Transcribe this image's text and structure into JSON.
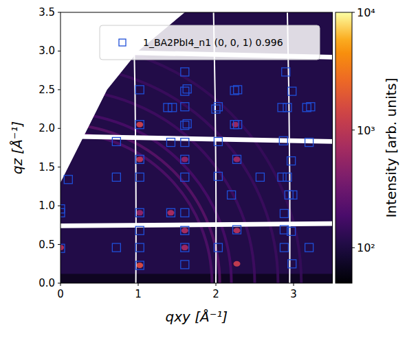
{
  "chart_data": {
    "type": "scatter",
    "x_label": "qxy [Å⁻¹]",
    "y_label": "qz [Å⁻¹]",
    "xlim": [
      0,
      3.5
    ],
    "ylim": [
      0,
      3.5
    ],
    "xticks": [
      0,
      1,
      2,
      3
    ],
    "yticks": [
      {
        "value": 0,
        "label": "0.0"
      },
      {
        "value": 0.5,
        "label": "0.5"
      },
      {
        "value": 1,
        "label": "1.0"
      },
      {
        "value": 1.5,
        "label": "1.5"
      },
      {
        "value": 2,
        "label": "2.0"
      },
      {
        "value": 2.5,
        "label": "2.5"
      },
      {
        "value": 3,
        "label": "3.0"
      },
      {
        "value": 3.5,
        "label": "3.5"
      }
    ],
    "legend": "upper center",
    "series": [
      {
        "name": "1_BA2PbI4_n1 (0, 0, 1) 0.996",
        "color": "#1f4fd8",
        "marker": "square",
        "x": [
          0.0,
          0.72,
          1.02,
          1.6,
          2.03,
          2.88,
          3.2,
          1.02,
          1.6,
          2.98,
          1.02,
          1.6,
          2.27,
          2.88,
          2.97,
          0.0,
          0.0,
          1.02,
          1.42,
          1.6,
          2.88,
          2.2,
          2.94,
          2.99,
          0.1,
          0.72,
          1.02,
          1.6,
          2.03,
          2.57,
          2.85,
          2.92,
          1.02,
          1.6,
          2.27,
          2.97,
          0.72,
          1.42,
          1.6,
          2.03,
          2.87,
          3.2,
          1.02,
          1.6,
          1.63,
          2.24,
          2.28,
          1.38,
          1.44,
          1.6,
          2.0,
          2.03,
          2.85,
          2.92,
          3.17,
          3.22,
          1.02,
          1.6,
          1.63,
          2.24,
          2.28,
          2.98,
          1.6,
          2.9
        ],
        "y": [
          0.45,
          0.46,
          0.46,
          0.46,
          0.46,
          0.46,
          0.46,
          0.23,
          0.24,
          0.25,
          0.68,
          0.68,
          0.69,
          0.69,
          0.67,
          0.91,
          0.96,
          0.91,
          0.91,
          0.91,
          0.9,
          1.14,
          1.14,
          1.14,
          1.34,
          1.37,
          1.37,
          1.37,
          1.38,
          1.37,
          1.37,
          1.37,
          1.6,
          1.6,
          1.6,
          1.58,
          1.83,
          1.82,
          1.82,
          1.83,
          1.84,
          1.82,
          2.05,
          2.04,
          2.06,
          2.05,
          2.05,
          2.27,
          2.27,
          2.28,
          2.25,
          2.28,
          2.27,
          2.27,
          2.27,
          2.28,
          2.5,
          2.48,
          2.51,
          2.49,
          2.5,
          2.48,
          2.73,
          2.73
        ]
      }
    ],
    "background_intensity": 110,
    "rings": {
      "q": [
        1.95,
        2.05,
        2.2,
        2.5,
        2.8,
        3.1
      ],
      "intensity": [
        220,
        260,
        200,
        170,
        160,
        150
      ]
    },
    "spots": {
      "qxy": [
        1.02,
        1.02,
        1.02,
        1.6,
        1.42,
        2.27,
        2.27,
        2.27,
        1.6,
        1.6,
        2.25,
        1.02,
        0.0
      ],
      "qz": [
        0.23,
        2.05,
        1.6,
        0.68,
        0.91,
        0.25,
        0.68,
        1.6,
        0.46,
        1.6,
        2.05,
        0.91,
        0.46
      ],
      "intensity": [
        1500,
        1200,
        900,
        700,
        700,
        1100,
        800,
        600,
        600,
        500,
        600,
        500,
        800
      ]
    },
    "colorbar": {
      "label": "Intensity [arb. units]",
      "range": [
        50,
        10000
      ],
      "ticks": [
        {
          "value": 100,
          "label": "10²"
        },
        {
          "value": 1000,
          "label": "10³"
        },
        {
          "value": 10000,
          "label": "10⁴"
        }
      ]
    }
  }
}
